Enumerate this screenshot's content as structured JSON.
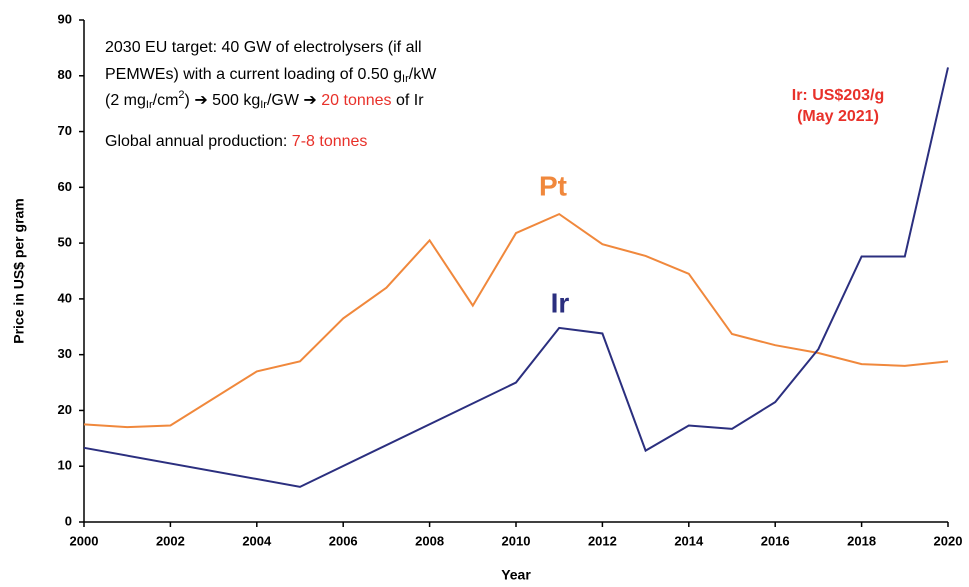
{
  "chart_data": {
    "type": "line",
    "xlabel": "Year",
    "ylabel": "Price in US$ per gram",
    "xlim": [
      2000,
      2020
    ],
    "xticks": [
      2000,
      2002,
      2004,
      2006,
      2008,
      2010,
      2012,
      2014,
      2016,
      2018,
      2020
    ],
    "ylim": [
      0,
      90
    ],
    "yticks": [
      0,
      10,
      20,
      30,
      40,
      50,
      60,
      70,
      80,
      90
    ],
    "grid": false,
    "series": [
      {
        "name": "Pt",
        "color": "#f0883c",
        "x": [
          2000,
          2001,
          2002,
          2004,
          2005,
          2006,
          2007,
          2008,
          2009,
          2010,
          2011,
          2012,
          2013,
          2014,
          2015,
          2016,
          2017,
          2018,
          2019,
          2020
        ],
        "values": [
          17.5,
          17,
          17.3,
          27,
          28.8,
          36.5,
          42,
          50.5,
          38.8,
          51.8,
          55.2,
          49.8,
          47.7,
          44.5,
          33.7,
          31.7,
          30.3,
          28.3,
          28,
          28.8
        ]
      },
      {
        "name": "Ir",
        "color": "#2b2f7f",
        "x": [
          2000,
          2005,
          2010,
          2011,
          2012,
          2013,
          2014,
          2015,
          2016,
          2017,
          2018,
          2019,
          2020
        ],
        "values": [
          13.3,
          6.3,
          25,
          34.8,
          33.8,
          12.8,
          17.3,
          16.7,
          21.5,
          31,
          47.6,
          47.6,
          81.5
        ]
      }
    ],
    "annotations": [
      [
        {
          "text": "2030 EU target: 40 GW of electrolysers (if all"
        }
      ],
      [
        {
          "text": "PEMWEs) with a current loading of 0.50 g"
        },
        {
          "text": "Ir",
          "sub": true
        },
        {
          "text": "/kW"
        }
      ],
      [
        {
          "text": "(2 mg"
        },
        {
          "text": "Ir",
          "sub": true
        },
        {
          "text": "/cm"
        },
        {
          "text": "2",
          "sup": true
        },
        {
          "text": ") ➔ 500 kg"
        },
        {
          "text": "Ir",
          "sub": true
        },
        {
          "text": "/GW ➔ "
        },
        {
          "text": "20 tonnes",
          "color": "#e8312a"
        },
        {
          "text": " of Ir"
        }
      ],
      [
        {
          "text": "Global annual production: "
        },
        {
          "text": "7-8 tonnes",
          "color": "#e8312a"
        }
      ]
    ],
    "price_note": {
      "lines": [
        "Ir: US$203/g",
        "(May 2021)"
      ],
      "color": "#e8312a"
    }
  }
}
